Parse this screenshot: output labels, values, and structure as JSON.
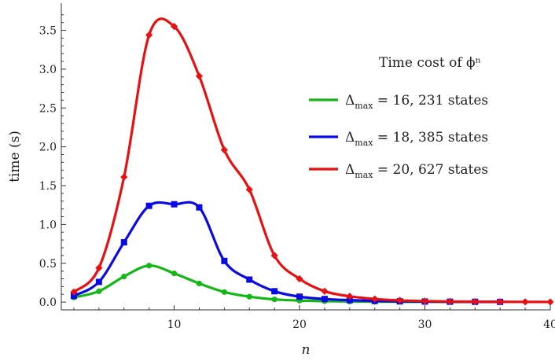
{
  "chart_data": {
    "type": "line",
    "title": "",
    "xlabel": "n",
    "ylabel": "time (s)",
    "xlim": [
      1,
      40
    ],
    "ylim": [
      -0.1,
      3.85
    ],
    "xticks": [
      10,
      20,
      30,
      40
    ],
    "yticks": [
      0.0,
      0.5,
      1.0,
      1.5,
      2.0,
      2.5,
      3.0,
      3.5
    ],
    "ytick_labels": [
      "0.0",
      "0.5",
      "1.0",
      "1.5",
      "2.0",
      "2.5",
      "3.0",
      "3.5"
    ],
    "grid": false,
    "legend_title": "Time cost of ϕⁿ",
    "legend_placement": "upper-right",
    "series": [
      {
        "name": "Δmax = 16,   231 states",
        "legend_base": "Δ",
        "legend_sub": "max",
        "legend_rest": " = 16,   231 states",
        "color": "#14b814",
        "marker": "circle",
        "x": [
          2,
          4,
          6,
          8,
          10,
          12,
          14,
          16,
          18,
          20,
          22,
          24,
          26,
          28,
          30,
          32,
          34,
          36
        ],
        "y": [
          0.06,
          0.14,
          0.33,
          0.47,
          0.37,
          0.24,
          0.13,
          0.07,
          0.035,
          0.02,
          0.012,
          0.008,
          0.005,
          0.004,
          0.003,
          0.002,
          0.002,
          0.002
        ]
      },
      {
        "name": "Δmax = 18,   385 states",
        "legend_base": "Δ",
        "legend_sub": "max",
        "legend_rest": " = 18,   385 states",
        "color": "#0a0ae6",
        "marker": "square",
        "x": [
          2,
          4,
          6,
          8,
          10,
          12,
          14,
          16,
          18,
          20,
          22,
          24,
          26,
          28,
          30,
          32,
          34,
          36
        ],
        "y": [
          0.08,
          0.26,
          0.77,
          1.24,
          1.26,
          1.22,
          0.53,
          0.29,
          0.14,
          0.07,
          0.04,
          0.025,
          0.015,
          0.01,
          0.007,
          0.005,
          0.004,
          0.003
        ]
      },
      {
        "name": "Δmax = 20,   627 states",
        "legend_base": "Δ",
        "legend_sub": "max",
        "legend_rest": " = 20,   627 states",
        "color": "#e81010",
        "marker": "diamond",
        "x": [
          2,
          4,
          6,
          8,
          10,
          12,
          14,
          16,
          18,
          20,
          22,
          24,
          26,
          28,
          30,
          32,
          34,
          36,
          38,
          40
        ],
        "y": [
          0.13,
          0.44,
          1.61,
          3.44,
          3.55,
          2.91,
          1.96,
          1.45,
          0.6,
          0.3,
          0.14,
          0.075,
          0.04,
          0.022,
          0.013,
          0.008,
          0.006,
          0.004,
          0.003,
          0.002
        ]
      }
    ]
  }
}
